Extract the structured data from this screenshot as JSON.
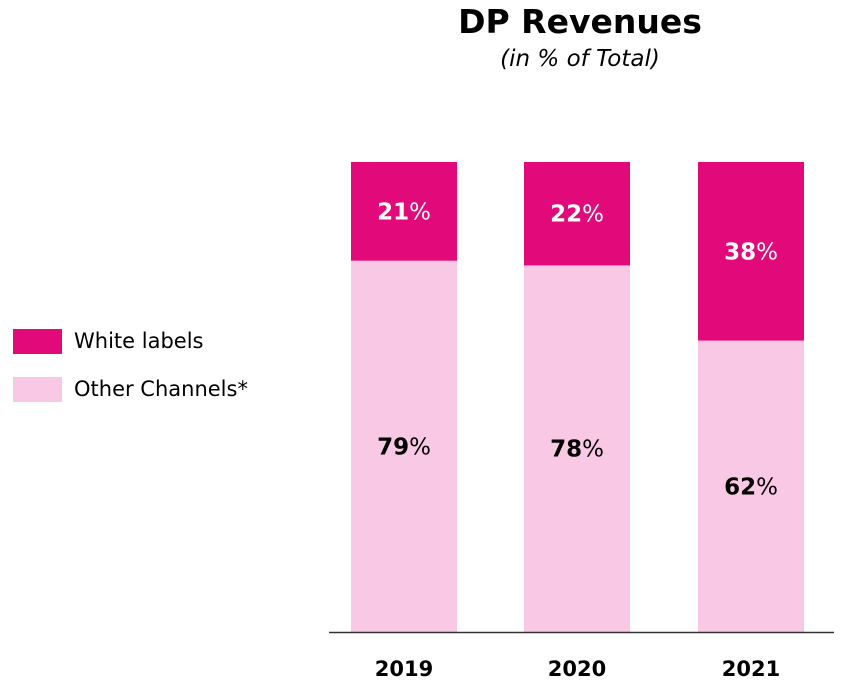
{
  "chart_data": {
    "type": "bar",
    "stacked": true,
    "title": "DP Revenues",
    "subtitle": "(in % of Total)",
    "categories": [
      "2019",
      "2020",
      "2021"
    ],
    "series": [
      {
        "name": "Other Channels*",
        "values": [
          79,
          78,
          62
        ],
        "color": "#f9c8e4",
        "labels": [
          "79%",
          "78%",
          "62%"
        ]
      },
      {
        "name": "White labels",
        "values": [
          21,
          22,
          38
        ],
        "color": "#e20a7a",
        "labels": [
          "21%",
          "22%",
          "38%"
        ]
      }
    ],
    "ylim": [
      0,
      100
    ],
    "unit": "%",
    "legend_position": "left",
    "grid": false
  }
}
